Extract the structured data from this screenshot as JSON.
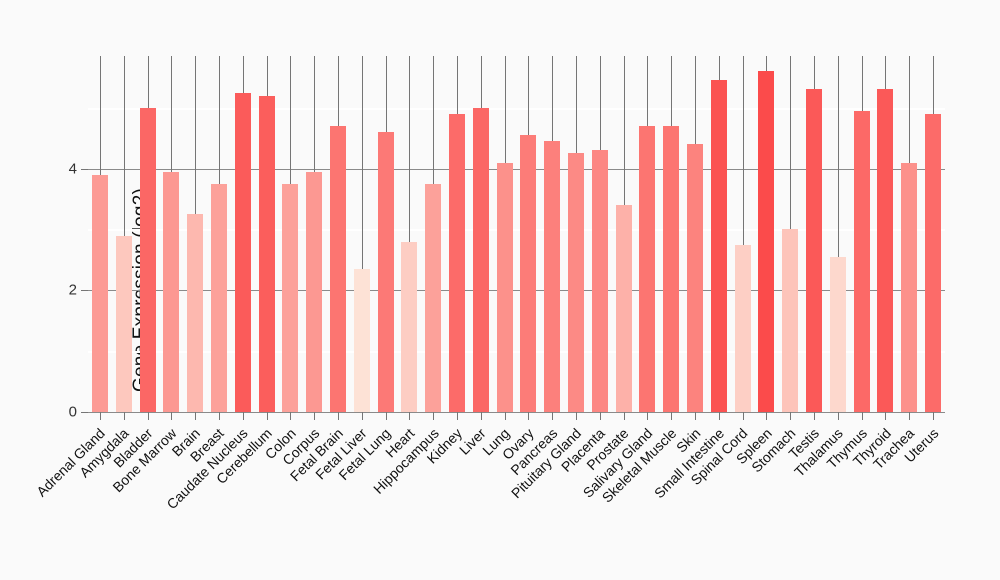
{
  "chart_data": {
    "type": "bar",
    "title": "",
    "xlabel": "",
    "ylabel": "Gene Expression (log2)",
    "ylim": [
      0,
      5.85
    ],
    "yticks_major": [
      0,
      2,
      4
    ],
    "yticks_minor": [
      1,
      3,
      5
    ],
    "grid": "horizontal major gray, horizontal minor white, vertical needle line per category",
    "legend_position": "none",
    "categories": [
      "Adrenal Gland",
      "Amygdala",
      "Bladder",
      "Bone Marrow",
      "Brain",
      "Breast",
      "Caudate Nucleus",
      "Cerebellum",
      "Colon",
      "Corpus",
      "Fetal Brain",
      "Fetal Liver",
      "Fetal Lung",
      "Heart",
      "Hippocampus",
      "Kidney",
      "Liver",
      "Lung",
      "Ovary",
      "Pancreas",
      "Pituitary Gland",
      "Placenta",
      "Prostate",
      "Salivary Gland",
      "Skeletal Muscle",
      "Skin",
      "Small Intestine",
      "Spinal Cord",
      "Spleen",
      "Stomach",
      "Testis",
      "Thalamus",
      "Thymus",
      "Thyroid",
      "Trachea",
      "Uterus"
    ],
    "values": [
      3.9,
      2.9,
      5.0,
      3.95,
      3.25,
      3.75,
      5.25,
      5.2,
      3.75,
      3.95,
      4.7,
      2.35,
      4.6,
      2.8,
      3.75,
      4.9,
      5.0,
      4.1,
      4.55,
      4.45,
      4.25,
      4.3,
      3.4,
      4.7,
      4.7,
      4.4,
      5.45,
      2.75,
      5.6,
      3.0,
      5.3,
      2.55,
      4.95,
      5.3,
      4.1,
      4.9
    ],
    "bar_colors": [
      "#fc9a94",
      "#fdc8be",
      "#fb6765",
      "#fc9892",
      "#fdb8af",
      "#fca19a",
      "#fb5b5a",
      "#fb5e5c",
      "#fca19a",
      "#fc9892",
      "#fc7571",
      "#fde2d6",
      "#fc7976",
      "#fdcdc3",
      "#fca19a",
      "#fc6b69",
      "#fb6765",
      "#fc918b",
      "#fc7c78",
      "#fc807c",
      "#fc8a85",
      "#fc8783",
      "#fdb1a9",
      "#fc7571",
      "#fc7571",
      "#fc837e",
      "#fb5251",
      "#fdcfc5",
      "#fb4b4b",
      "#fdc4ba",
      "#fb5958",
      "#fdd8cd",
      "#fc6967",
      "#fb5958",
      "#fc918b",
      "#fc6b69"
    ],
    "color_gradient": {
      "low_value": 2.35,
      "low_color": "#fde2d6",
      "high_value": 5.6,
      "high_color": "#fb4b4b"
    }
  },
  "colors": {
    "background": "#fafafa",
    "grid_major": "#8a8a8a",
    "grid_minor": "#ffffff",
    "needle_line": "#757575",
    "axis_text": "#333333",
    "label_text": "#111111"
  }
}
